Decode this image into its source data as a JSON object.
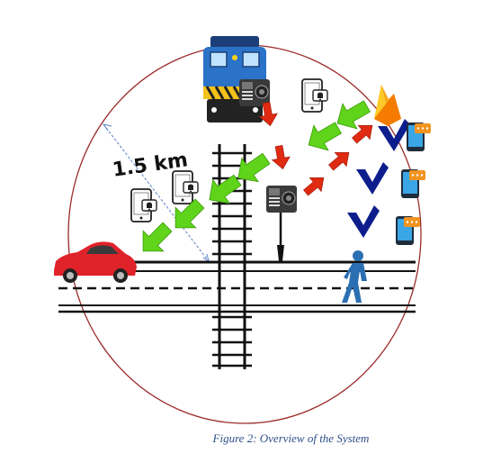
{
  "distance_label": "1.5 km",
  "caption": "Figure 2: Overview of the System",
  "colors": {
    "circle": "#9b2a2a",
    "green_arrow": "#5fd41a",
    "red_arrow": "#e02a12",
    "blue_arrow": "#0d1e8c",
    "car": "#e0222a",
    "pedestrian": "#2b6fb3",
    "train_body": "#2a73c8",
    "firebase": "#f6a81c",
    "phone_accent": "#3aa6e6"
  },
  "icons": [
    "train-icon",
    "sensor-device-icon",
    "smartphone-icon",
    "firebase-icon",
    "tablet-icon",
    "car-icon",
    "pedestrian-icon",
    "signal-pole-icon"
  ]
}
